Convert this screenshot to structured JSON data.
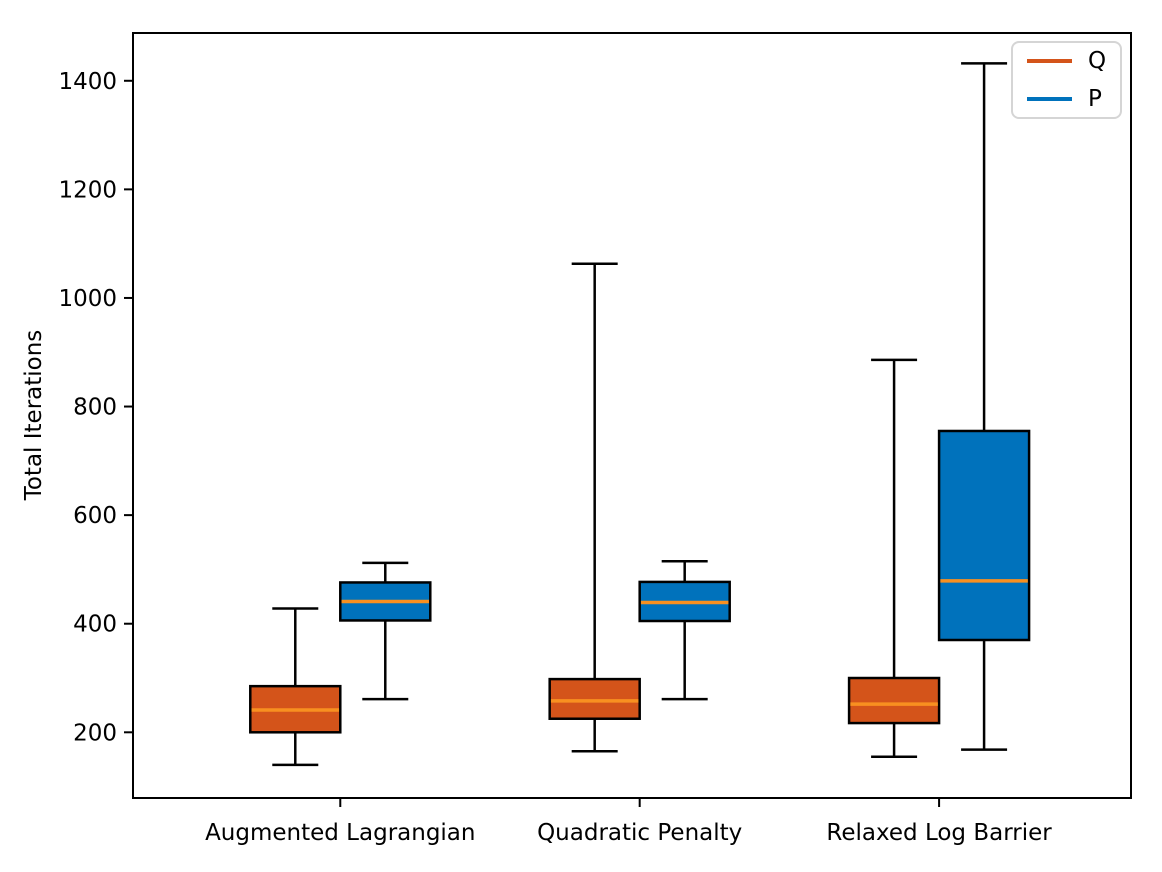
{
  "chart_data": {
    "type": "boxplot",
    "title": "",
    "xlabel": "",
    "ylabel": "Total Iterations",
    "ylim": [
      79,
      1488
    ],
    "yticks": [
      200,
      400,
      600,
      800,
      1000,
      1200,
      1400
    ],
    "categories": [
      "Augmented Lagrangian",
      "Quadratic Penalty",
      "Relaxed Log Barrier"
    ],
    "grid": false,
    "legend_position": "upper right",
    "legend": [
      {
        "label": "Q",
        "color": "#d4541a"
      },
      {
        "label": "P",
        "color": "#0072bc"
      }
    ],
    "colors": {
      "box_edge": "#000000",
      "median_line": "#f89020",
      "whisker": "#000000",
      "q_fill": "#d4541a",
      "p_fill": "#0072bc"
    },
    "series": [
      {
        "name": "Q",
        "color": "#d4541a",
        "boxes": [
          {
            "category": "Augmented Lagrangian",
            "whislo": 140,
            "q1": 200,
            "med": 241,
            "q3": 285,
            "whishi": 428
          },
          {
            "category": "Quadratic Penalty",
            "whislo": 165,
            "q1": 225,
            "med": 258,
            "q3": 298,
            "whishi": 1063
          },
          {
            "category": "Relaxed Log Barrier",
            "whislo": 155,
            "q1": 217,
            "med": 252,
            "q3": 300,
            "whishi": 886
          }
        ]
      },
      {
        "name": "P",
        "color": "#0072bc",
        "boxes": [
          {
            "category": "Augmented Lagrangian",
            "whislo": 261,
            "q1": 406,
            "med": 441,
            "q3": 476,
            "whishi": 512
          },
          {
            "category": "Quadratic Penalty",
            "whislo": 261,
            "q1": 405,
            "med": 439,
            "q3": 477,
            "whishi": 515
          },
          {
            "category": "Relaxed Log Barrier",
            "whislo": 168,
            "q1": 370,
            "med": 479,
            "q3": 755,
            "whishi": 1432
          }
        ]
      }
    ]
  }
}
